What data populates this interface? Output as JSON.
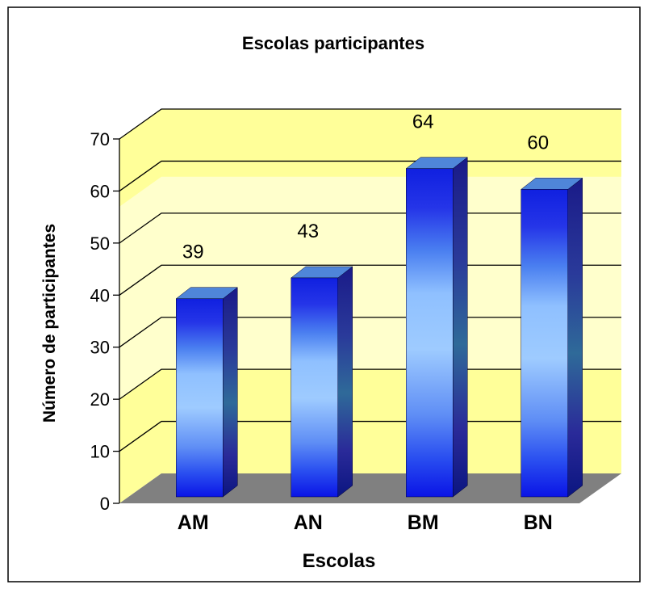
{
  "chart_data": {
    "type": "bar",
    "title": "Escolas participantes",
    "xlabel": "Escolas",
    "ylabel": "Número de participantes",
    "categories": [
      "AM",
      "AN",
      "BM",
      "BN"
    ],
    "values": [
      39,
      43,
      64,
      60
    ],
    "data_labels": [
      "39",
      "43",
      "64",
      "60"
    ],
    "y_ticks": [
      "0",
      "10",
      "20",
      "30",
      "40",
      "50",
      "60",
      "70"
    ],
    "ylim": [
      0,
      70
    ],
    "grid": true,
    "legend": "none",
    "style": "3d-cylinder-gradient",
    "colors": {
      "wall": "#ffff99",
      "wall_light": "#ffffcc",
      "floor": "#808080",
      "bar_dark": "#0a14e6",
      "bar_light": "#99ccff",
      "bar_side": "#2b2b99",
      "bar_top": "#4f86d9"
    }
  }
}
